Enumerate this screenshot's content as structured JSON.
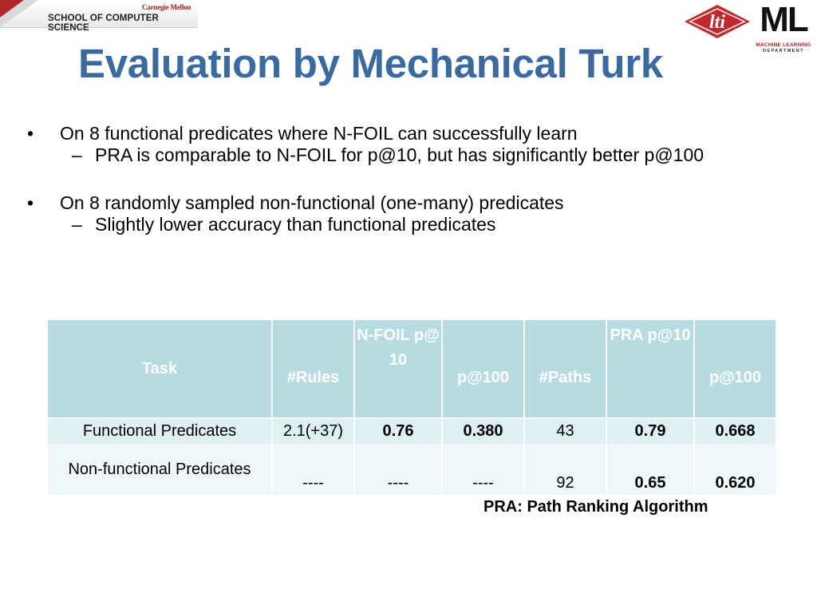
{
  "header": {
    "institution": "Carnegie Mellon",
    "school": "SCHOOL OF COMPUTER SCIENCE",
    "lti_logo_text": "lti",
    "ml_logo_text": "ML",
    "ml_logo_sub1": "MACHINE LEARNING",
    "ml_logo_sub2": "DEPARTMENT",
    "accent_red": "#b2272c",
    "title_blue": "#3a6aa0"
  },
  "title": "Evaluation by Mechanical Turk",
  "bullets": [
    {
      "text": "On 8 functional predicates where N-FOIL can successfully learn",
      "subs": [
        "PRA is comparable to N-FOIL for p@10, but has significantly better p@100"
      ]
    },
    {
      "text": "On 8 randomly sampled non-functional (one-many) predicates",
      "subs": [
        "Slightly lower accuracy than functional predicates"
      ]
    }
  ],
  "bullet_mark": "•",
  "sub_mark": "–",
  "table": {
    "headers": [
      "Task",
      "#Rules",
      "N-FOIL p@10",
      "p@100",
      "#Paths",
      "PRA p@10",
      "p@100"
    ],
    "rows": [
      [
        "Functional Predicates",
        "2.1(+37)",
        "0.76",
        "0.380",
        "43",
        "0.79",
        "0.668"
      ],
      [
        "Non-functional Predicates",
        "----",
        "----",
        "----",
        "92",
        "0.65",
        "0.620"
      ]
    ],
    "header_color": "#b6dbe1"
  },
  "footnote": "PRA: Path Ranking Algorithm"
}
